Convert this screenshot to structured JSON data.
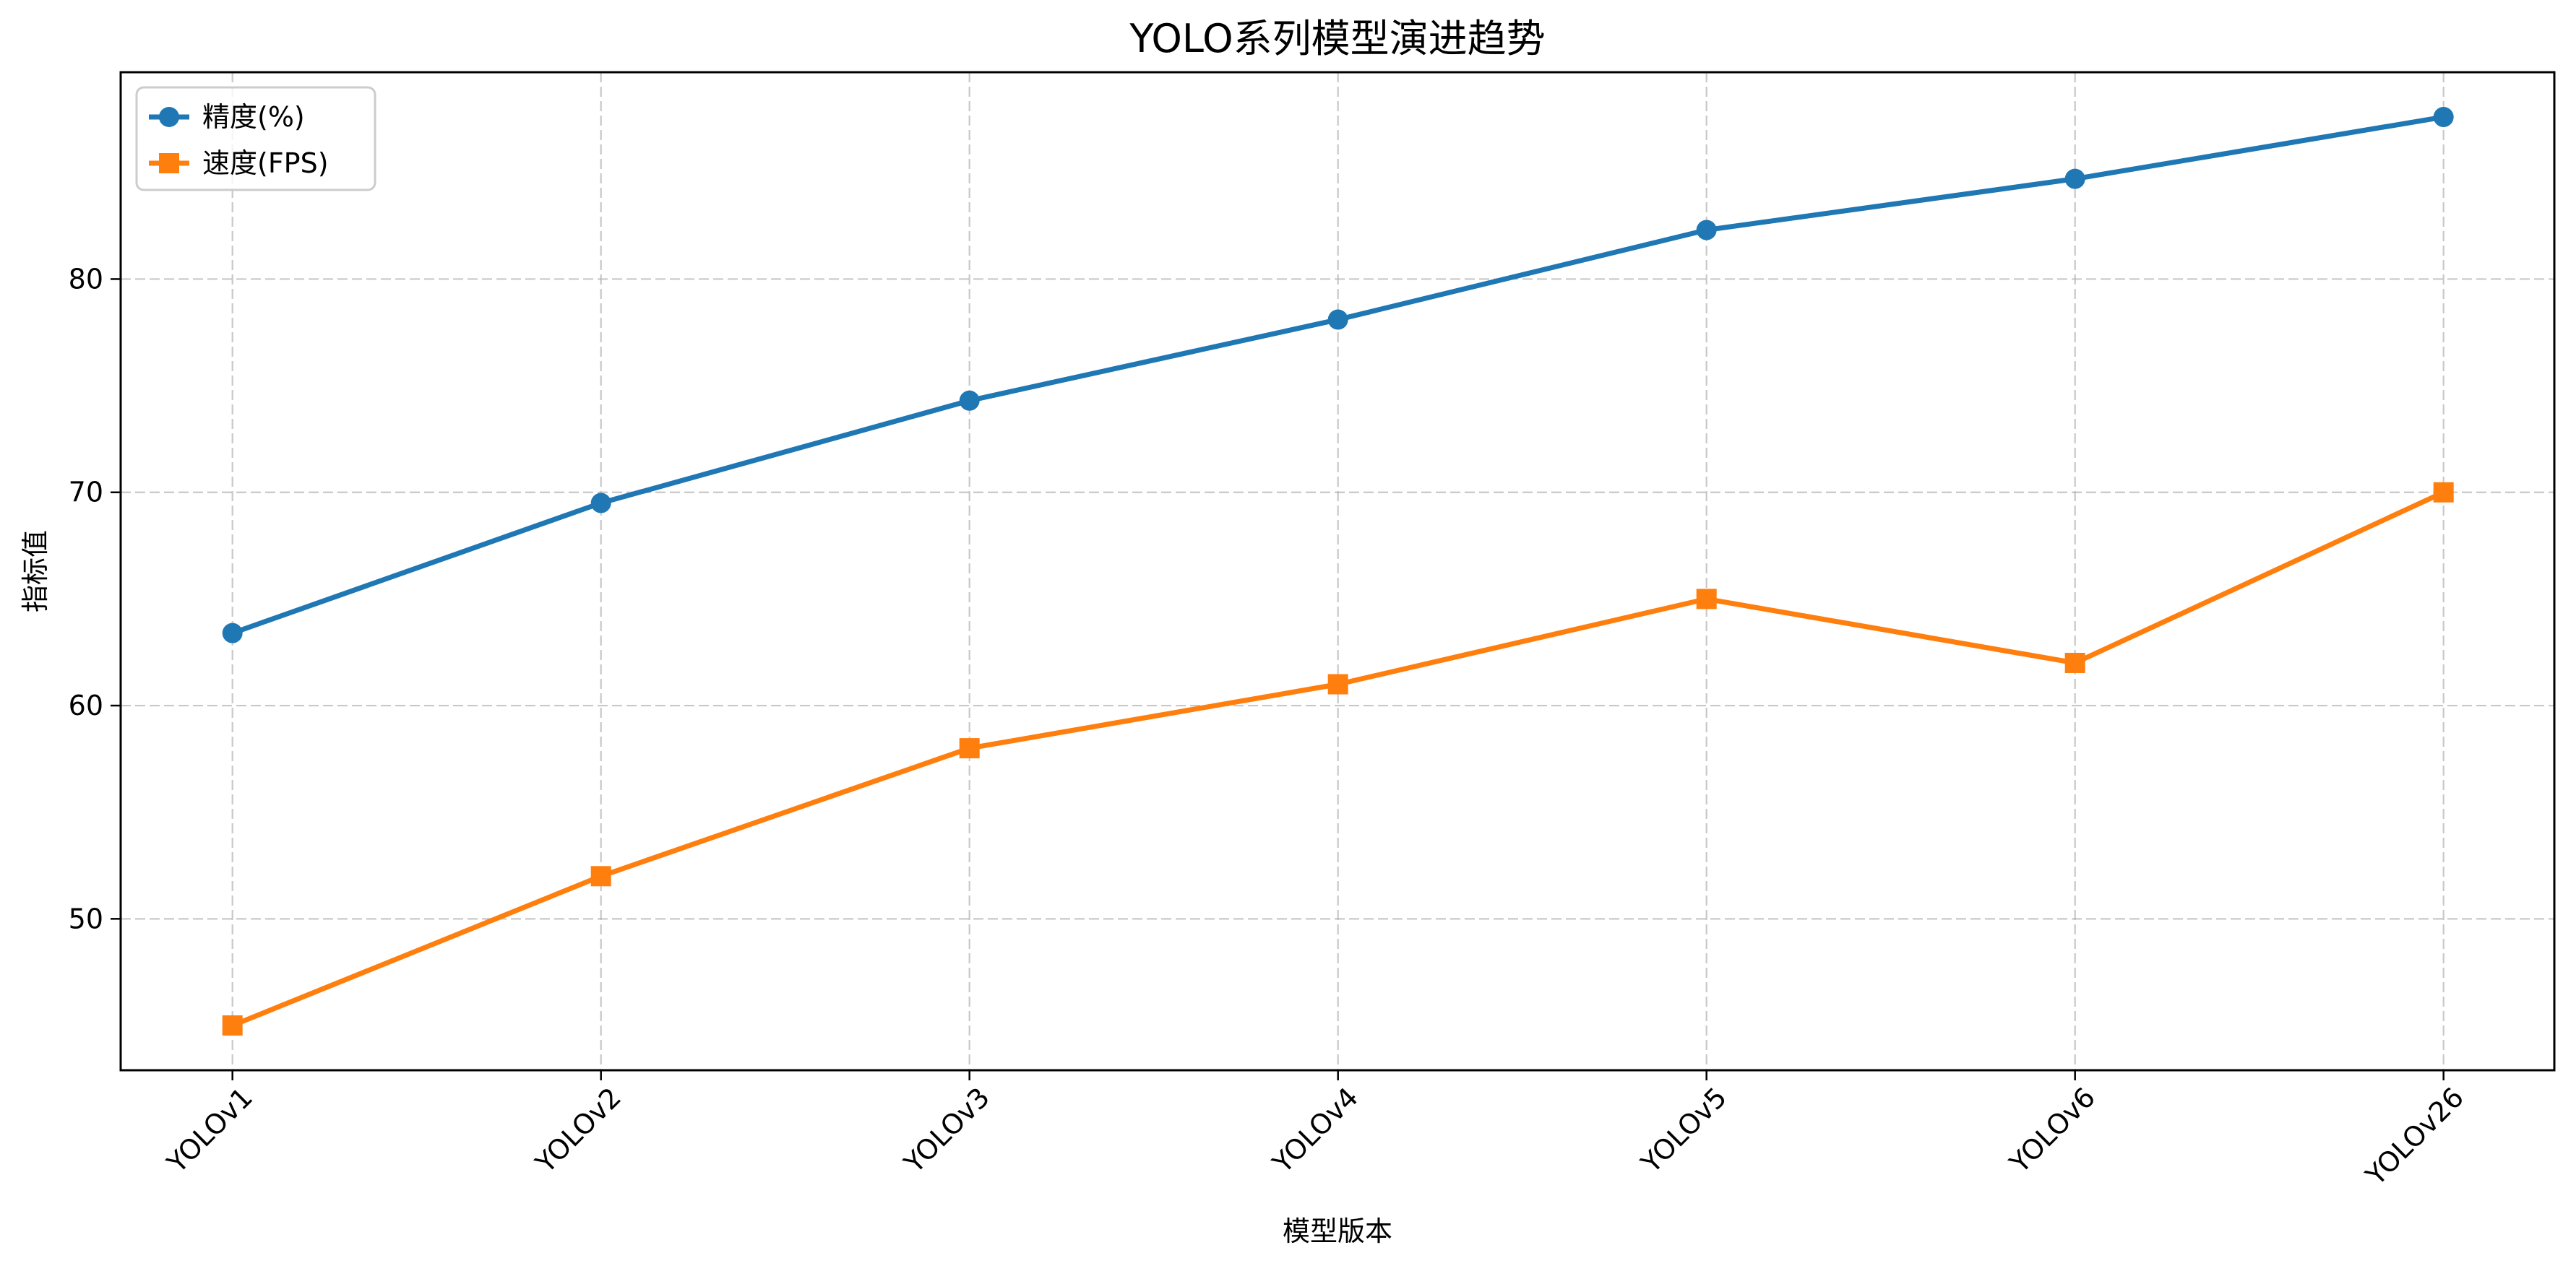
{
  "chart_data": {
    "type": "line",
    "title": "YOLO系列模型演进趋势",
    "xlabel": "模型版本",
    "ylabel": "指标值",
    "categories": [
      "YOLOv1",
      "YOLOv2",
      "YOLOv3",
      "YOLOv4",
      "YOLOv5",
      "YOLOv6",
      "YOLOv26"
    ],
    "series": [
      {
        "name": "精度(%)",
        "values": [
          63.4,
          69.5,
          74.3,
          78.1,
          82.3,
          84.7,
          87.6
        ],
        "color": "#1f77b4",
        "marker": "circle"
      },
      {
        "name": "速度(FPS)",
        "values": [
          45,
          52,
          58,
          61,
          65,
          62,
          70
        ],
        "color": "#ff7f0e",
        "marker": "square"
      }
    ],
    "ylim": [
      42.9,
      89.7
    ],
    "yticks": [
      50,
      60,
      70,
      80
    ],
    "grid": true,
    "grid_style": "dashed",
    "legend_position": "upper left",
    "xtick_rotation": 45
  }
}
